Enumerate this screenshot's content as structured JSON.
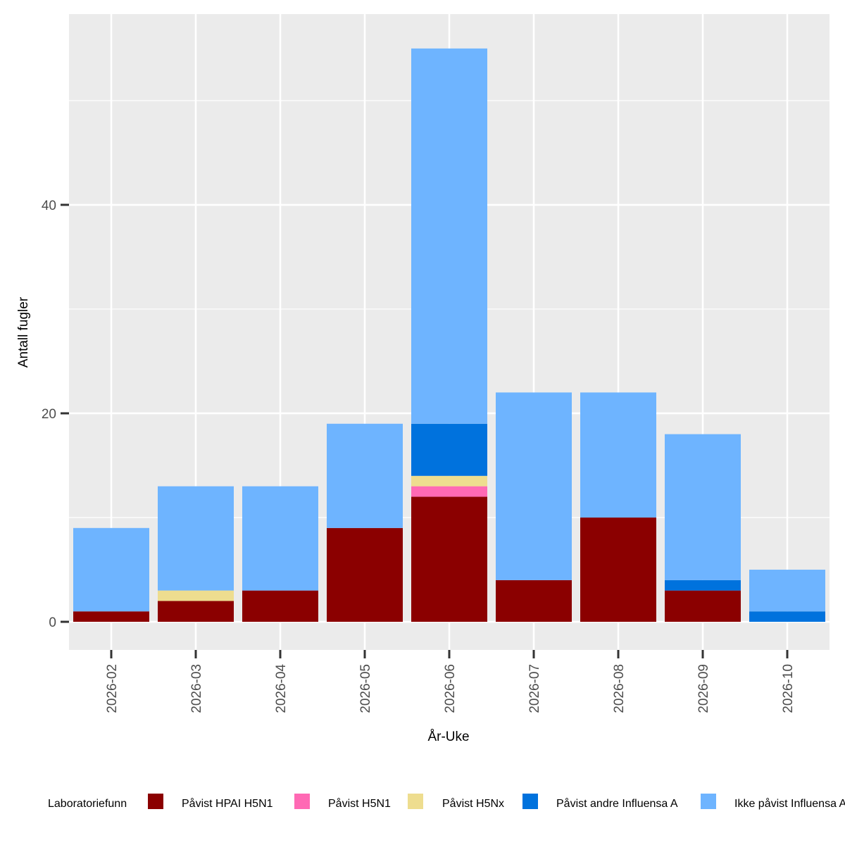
{
  "chart_data": {
    "type": "bar",
    "stacked": true,
    "title": "",
    "xlabel": "År-Uke",
    "ylabel": "Antall fugler",
    "ylim": [
      -2.7,
      58.3
    ],
    "yticks": [
      0,
      20,
      40
    ],
    "categories": [
      "2026-02",
      "2026-03",
      "2026-04",
      "2026-05",
      "2026-06",
      "2026-07",
      "2026-08",
      "2026-09",
      "2026-10"
    ],
    "series": [
      {
        "name": "Påvist HPAI H5N1",
        "color": "#8B0000",
        "values": [
          1,
          2,
          3,
          9,
          12,
          4,
          10,
          3,
          0
        ]
      },
      {
        "name": "Påvist H5N1",
        "color": "#FF69B4",
        "values": [
          0,
          0,
          0,
          0,
          1,
          0,
          0,
          0,
          0
        ]
      },
      {
        "name": "Påvist H5Nx",
        "color": "#EEDD8F",
        "values": [
          0,
          1,
          0,
          0,
          1,
          0,
          0,
          0,
          0
        ]
      },
      {
        "name": "Påvist andre Influensa A",
        "color": "#0072DD",
        "values": [
          0,
          0,
          0,
          0,
          5,
          0,
          0,
          1,
          1
        ]
      },
      {
        "name": "Ikke påvist Influensa A",
        "color": "#6EB4FF",
        "values": [
          8,
          10,
          10,
          10,
          36,
          18,
          12,
          14,
          4
        ]
      }
    ],
    "legend": {
      "title": "Laboratoriefunn",
      "position": "bottom"
    },
    "grid": true
  }
}
